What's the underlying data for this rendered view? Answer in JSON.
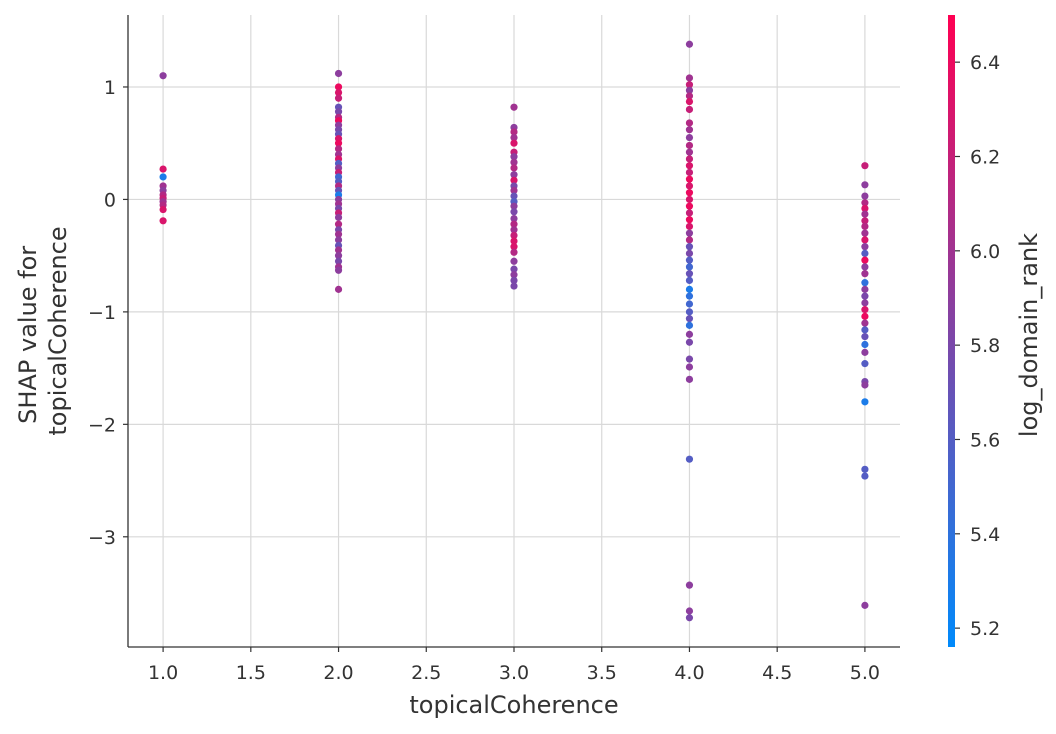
{
  "chart_data": {
    "type": "scatter",
    "title": "",
    "xlabel": "topicalCoherence",
    "ylabel_lines": [
      "SHAP value for",
      "topicalCoherence"
    ],
    "colorbar_label": "log_domain_rank",
    "xlim": [
      0.8,
      5.2
    ],
    "ylim": [
      -3.98,
      1.64
    ],
    "x_ticks": [
      1.0,
      1.5,
      2.0,
      2.5,
      3.0,
      3.5,
      4.0,
      4.5,
      5.0
    ],
    "x_tick_labels": [
      "1.0",
      "1.5",
      "2.0",
      "2.5",
      "3.0",
      "3.5",
      "4.0",
      "4.5",
      "5.0"
    ],
    "y_ticks": [
      1,
      0,
      -1,
      -2,
      -3
    ],
    "y_tick_labels": [
      "1",
      "0",
      "−1",
      "−2",
      "−3"
    ],
    "colorbar_range": [
      5.16,
      6.5
    ],
    "colorbar_ticks": [
      5.2,
      5.4,
      5.6,
      5.8,
      6.0,
      6.2,
      6.4
    ],
    "colorbar_tick_labels": [
      "5.2",
      "5.4",
      "5.6",
      "5.8",
      "6.0",
      "6.2",
      "6.4"
    ],
    "colormap": [
      "#008afb",
      "#ff0052"
    ],
    "grid": true,
    "points": [
      {
        "x": 1.0,
        "y": 1.1,
        "c": 5.9
      },
      {
        "x": 1.0,
        "y": 0.27,
        "c": 6.3
      },
      {
        "x": 1.0,
        "y": 0.2,
        "c": 5.3
      },
      {
        "x": 1.0,
        "y": 0.12,
        "c": 6.0
      },
      {
        "x": 1.0,
        "y": 0.08,
        "c": 5.9
      },
      {
        "x": 1.0,
        "y": 0.04,
        "c": 6.1
      },
      {
        "x": 1.0,
        "y": 0.01,
        "c": 6.2
      },
      {
        "x": 1.0,
        "y": -0.02,
        "c": 6.0
      },
      {
        "x": 1.0,
        "y": -0.05,
        "c": 6.1
      },
      {
        "x": 1.0,
        "y": -0.09,
        "c": 6.3
      },
      {
        "x": 1.0,
        "y": -0.19,
        "c": 6.3
      },
      {
        "x": 2.0,
        "y": 1.12,
        "c": 5.9
      },
      {
        "x": 2.0,
        "y": 1.0,
        "c": 6.4
      },
      {
        "x": 2.0,
        "y": 0.95,
        "c": 6.3
      },
      {
        "x": 2.0,
        "y": 0.9,
        "c": 6.2
      },
      {
        "x": 2.0,
        "y": 0.82,
        "c": 5.7
      },
      {
        "x": 2.0,
        "y": 0.78,
        "c": 5.8
      },
      {
        "x": 2.0,
        "y": 0.73,
        "c": 6.1
      },
      {
        "x": 2.0,
        "y": 0.7,
        "c": 6.4
      },
      {
        "x": 2.0,
        "y": 0.66,
        "c": 5.9
      },
      {
        "x": 2.0,
        "y": 0.62,
        "c": 5.8
      },
      {
        "x": 2.0,
        "y": 0.58,
        "c": 5.7
      },
      {
        "x": 2.0,
        "y": 0.54,
        "c": 6.3
      },
      {
        "x": 2.0,
        "y": 0.5,
        "c": 6.4
      },
      {
        "x": 2.0,
        "y": 0.45,
        "c": 6.1
      },
      {
        "x": 2.0,
        "y": 0.4,
        "c": 6.0
      },
      {
        "x": 2.0,
        "y": 0.36,
        "c": 6.3
      },
      {
        "x": 2.0,
        "y": 0.32,
        "c": 5.6
      },
      {
        "x": 2.0,
        "y": 0.28,
        "c": 5.9
      },
      {
        "x": 2.0,
        "y": 0.24,
        "c": 6.2
      },
      {
        "x": 2.0,
        "y": 0.2,
        "c": 5.5
      },
      {
        "x": 2.0,
        "y": 0.16,
        "c": 5.6
      },
      {
        "x": 2.0,
        "y": 0.12,
        "c": 6.1
      },
      {
        "x": 2.0,
        "y": 0.08,
        "c": 5.7
      },
      {
        "x": 2.0,
        "y": 0.04,
        "c": 5.3
      },
      {
        "x": 2.0,
        "y": 0.0,
        "c": 5.9
      },
      {
        "x": 2.0,
        "y": -0.04,
        "c": 6.0
      },
      {
        "x": 2.0,
        "y": -0.08,
        "c": 5.8
      },
      {
        "x": 2.0,
        "y": -0.12,
        "c": 6.2
      },
      {
        "x": 2.0,
        "y": -0.16,
        "c": 5.9
      },
      {
        "x": 2.0,
        "y": -0.22,
        "c": 6.1
      },
      {
        "x": 2.0,
        "y": -0.27,
        "c": 5.8
      },
      {
        "x": 2.0,
        "y": -0.31,
        "c": 6.0
      },
      {
        "x": 2.0,
        "y": -0.36,
        "c": 5.9
      },
      {
        "x": 2.0,
        "y": -0.41,
        "c": 5.7
      },
      {
        "x": 2.0,
        "y": -0.45,
        "c": 6.0
      },
      {
        "x": 2.0,
        "y": -0.5,
        "c": 5.9
      },
      {
        "x": 2.0,
        "y": -0.55,
        "c": 5.8
      },
      {
        "x": 2.0,
        "y": -0.6,
        "c": 6.0
      },
      {
        "x": 2.0,
        "y": -0.63,
        "c": 5.9
      },
      {
        "x": 2.0,
        "y": -0.8,
        "c": 6.0
      },
      {
        "x": 3.0,
        "y": 0.82,
        "c": 6.0
      },
      {
        "x": 3.0,
        "y": 0.64,
        "c": 5.9
      },
      {
        "x": 3.0,
        "y": 0.6,
        "c": 6.1
      },
      {
        "x": 3.0,
        "y": 0.55,
        "c": 6.0
      },
      {
        "x": 3.0,
        "y": 0.5,
        "c": 6.3
      },
      {
        "x": 3.0,
        "y": 0.42,
        "c": 6.2
      },
      {
        "x": 3.0,
        "y": 0.38,
        "c": 5.9
      },
      {
        "x": 3.0,
        "y": 0.33,
        "c": 6.0
      },
      {
        "x": 3.0,
        "y": 0.28,
        "c": 6.1
      },
      {
        "x": 3.0,
        "y": 0.22,
        "c": 5.9
      },
      {
        "x": 3.0,
        "y": 0.17,
        "c": 6.3
      },
      {
        "x": 3.0,
        "y": 0.12,
        "c": 5.8
      },
      {
        "x": 3.0,
        "y": 0.08,
        "c": 6.0
      },
      {
        "x": 3.0,
        "y": 0.03,
        "c": 5.7
      },
      {
        "x": 3.0,
        "y": -0.02,
        "c": 5.6
      },
      {
        "x": 3.0,
        "y": -0.06,
        "c": 5.9
      },
      {
        "x": 3.0,
        "y": -0.11,
        "c": 5.8
      },
      {
        "x": 3.0,
        "y": -0.17,
        "c": 5.9
      },
      {
        "x": 3.0,
        "y": -0.22,
        "c": 6.1
      },
      {
        "x": 3.0,
        "y": -0.27,
        "c": 6.0
      },
      {
        "x": 3.0,
        "y": -0.32,
        "c": 6.2
      },
      {
        "x": 3.0,
        "y": -0.37,
        "c": 6.3
      },
      {
        "x": 3.0,
        "y": -0.42,
        "c": 6.3
      },
      {
        "x": 3.0,
        "y": -0.47,
        "c": 6.1
      },
      {
        "x": 3.0,
        "y": -0.55,
        "c": 5.9
      },
      {
        "x": 3.0,
        "y": -0.62,
        "c": 5.8
      },
      {
        "x": 3.0,
        "y": -0.67,
        "c": 5.9
      },
      {
        "x": 3.0,
        "y": -0.72,
        "c": 5.8
      },
      {
        "x": 3.0,
        "y": -0.77,
        "c": 5.8
      },
      {
        "x": 4.0,
        "y": 1.38,
        "c": 5.9
      },
      {
        "x": 4.0,
        "y": 1.08,
        "c": 6.0
      },
      {
        "x": 4.0,
        "y": 1.02,
        "c": 6.2
      },
      {
        "x": 4.0,
        "y": 0.97,
        "c": 5.9
      },
      {
        "x": 4.0,
        "y": 0.92,
        "c": 6.1
      },
      {
        "x": 4.0,
        "y": 0.87,
        "c": 6.3
      },
      {
        "x": 4.0,
        "y": 0.8,
        "c": 6.2
      },
      {
        "x": 4.0,
        "y": 0.68,
        "c": 6.1
      },
      {
        "x": 4.0,
        "y": 0.62,
        "c": 6.0
      },
      {
        "x": 4.0,
        "y": 0.55,
        "c": 5.9
      },
      {
        "x": 4.0,
        "y": 0.48,
        "c": 6.1
      },
      {
        "x": 4.0,
        "y": 0.42,
        "c": 6.0
      },
      {
        "x": 4.0,
        "y": 0.36,
        "c": 6.2
      },
      {
        "x": 4.0,
        "y": 0.3,
        "c": 6.3
      },
      {
        "x": 4.0,
        "y": 0.24,
        "c": 6.2
      },
      {
        "x": 4.0,
        "y": 0.18,
        "c": 6.4
      },
      {
        "x": 4.0,
        "y": 0.12,
        "c": 6.3
      },
      {
        "x": 4.0,
        "y": 0.06,
        "c": 6.4
      },
      {
        "x": 4.0,
        "y": 0.0,
        "c": 6.3
      },
      {
        "x": 4.0,
        "y": -0.06,
        "c": 6.4
      },
      {
        "x": 4.0,
        "y": -0.12,
        "c": 6.2
      },
      {
        "x": 4.0,
        "y": -0.18,
        "c": 6.4
      },
      {
        "x": 4.0,
        "y": -0.24,
        "c": 6.3
      },
      {
        "x": 4.0,
        "y": -0.3,
        "c": 5.9
      },
      {
        "x": 4.0,
        "y": -0.36,
        "c": 6.1
      },
      {
        "x": 4.0,
        "y": -0.42,
        "c": 5.7
      },
      {
        "x": 4.0,
        "y": -0.48,
        "c": 5.8
      },
      {
        "x": 4.0,
        "y": -0.54,
        "c": 5.6
      },
      {
        "x": 4.0,
        "y": -0.6,
        "c": 5.5
      },
      {
        "x": 4.0,
        "y": -0.66,
        "c": 5.7
      },
      {
        "x": 4.0,
        "y": -0.72,
        "c": 5.6
      },
      {
        "x": 4.0,
        "y": -0.8,
        "c": 5.3
      },
      {
        "x": 4.0,
        "y": -0.86,
        "c": 5.4
      },
      {
        "x": 4.0,
        "y": -0.93,
        "c": 5.5
      },
      {
        "x": 4.0,
        "y": -1.0,
        "c": 5.6
      },
      {
        "x": 4.0,
        "y": -1.06,
        "c": 5.7
      },
      {
        "x": 4.0,
        "y": -1.12,
        "c": 5.4
      },
      {
        "x": 4.0,
        "y": -1.2,
        "c": 5.9
      },
      {
        "x": 4.0,
        "y": -1.27,
        "c": 5.8
      },
      {
        "x": 4.0,
        "y": -1.42,
        "c": 5.8
      },
      {
        "x": 4.0,
        "y": -1.49,
        "c": 5.9
      },
      {
        "x": 4.0,
        "y": -1.6,
        "c": 5.9
      },
      {
        "x": 4.0,
        "y": -2.31,
        "c": 5.6
      },
      {
        "x": 4.0,
        "y": -3.43,
        "c": 5.9
      },
      {
        "x": 4.0,
        "y": -3.66,
        "c": 5.9
      },
      {
        "x": 4.0,
        "y": -3.72,
        "c": 5.8
      },
      {
        "x": 5.0,
        "y": 0.3,
        "c": 6.2
      },
      {
        "x": 5.0,
        "y": 0.13,
        "c": 5.9
      },
      {
        "x": 5.0,
        "y": 0.03,
        "c": 5.9
      },
      {
        "x": 5.0,
        "y": -0.03,
        "c": 6.1
      },
      {
        "x": 5.0,
        "y": -0.08,
        "c": 6.3
      },
      {
        "x": 5.0,
        "y": -0.13,
        "c": 6.0
      },
      {
        "x": 5.0,
        "y": -0.19,
        "c": 6.2
      },
      {
        "x": 5.0,
        "y": -0.24,
        "c": 6.1
      },
      {
        "x": 5.0,
        "y": -0.3,
        "c": 6.0
      },
      {
        "x": 5.0,
        "y": -0.36,
        "c": 6.3
      },
      {
        "x": 5.0,
        "y": -0.42,
        "c": 5.9
      },
      {
        "x": 5.0,
        "y": -0.48,
        "c": 5.6
      },
      {
        "x": 5.0,
        "y": -0.54,
        "c": 6.4
      },
      {
        "x": 5.0,
        "y": -0.6,
        "c": 5.9
      },
      {
        "x": 5.0,
        "y": -0.66,
        "c": 6.0
      },
      {
        "x": 5.0,
        "y": -0.74,
        "c": 5.4
      },
      {
        "x": 5.0,
        "y": -0.8,
        "c": 5.9
      },
      {
        "x": 5.0,
        "y": -0.86,
        "c": 5.8
      },
      {
        "x": 5.0,
        "y": -0.92,
        "c": 5.9
      },
      {
        "x": 5.0,
        "y": -0.98,
        "c": 6.3
      },
      {
        "x": 5.0,
        "y": -1.04,
        "c": 6.4
      },
      {
        "x": 5.0,
        "y": -1.1,
        "c": 6.0
      },
      {
        "x": 5.0,
        "y": -1.16,
        "c": 5.6
      },
      {
        "x": 5.0,
        "y": -1.22,
        "c": 5.7
      },
      {
        "x": 5.0,
        "y": -1.29,
        "c": 5.4
      },
      {
        "x": 5.0,
        "y": -1.36,
        "c": 5.9
      },
      {
        "x": 5.0,
        "y": -1.46,
        "c": 5.6
      },
      {
        "x": 5.0,
        "y": -1.62,
        "c": 5.8
      },
      {
        "x": 5.0,
        "y": -1.65,
        "c": 5.9
      },
      {
        "x": 5.0,
        "y": -1.8,
        "c": 5.3
      },
      {
        "x": 5.0,
        "y": -2.4,
        "c": 5.6
      },
      {
        "x": 5.0,
        "y": -2.46,
        "c": 5.6
      },
      {
        "x": 5.0,
        "y": -3.61,
        "c": 5.9
      }
    ]
  }
}
